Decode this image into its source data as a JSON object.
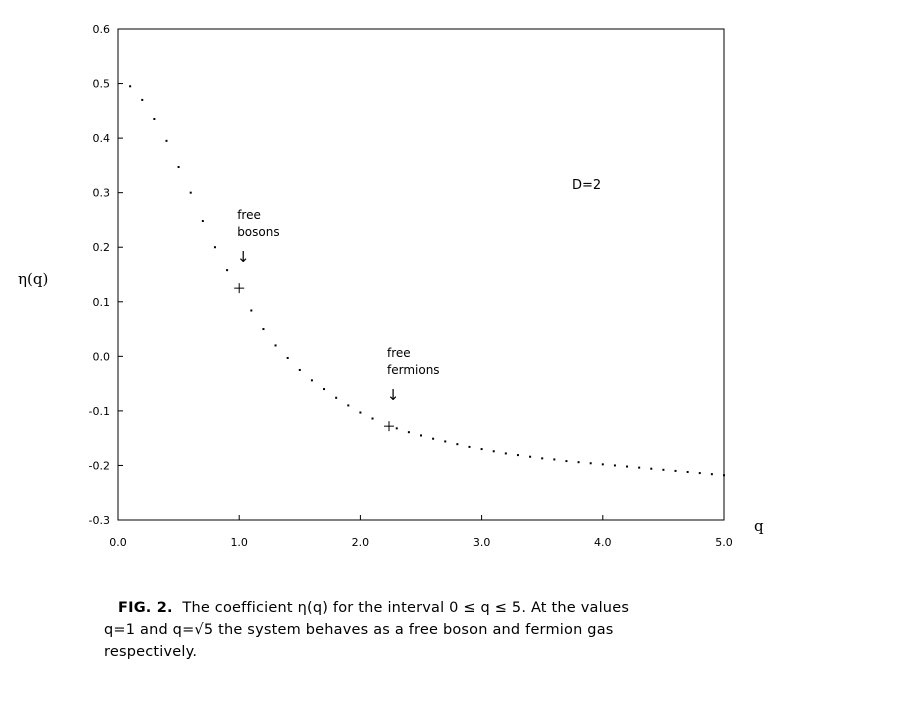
{
  "chart_data": {
    "type": "scatter",
    "title": "",
    "xlabel": "q",
    "ylabel": "η(q)",
    "xlim": [
      0.0,
      5.0
    ],
    "ylim": [
      -0.3,
      0.6
    ],
    "x_ticks": [
      "0.0",
      "1.0",
      "2.0",
      "3.0",
      "4.0",
      "5.0"
    ],
    "x_tick_values": [
      0,
      1,
      2,
      3,
      4,
      5
    ],
    "y_ticks": [
      "-0.3",
      "-0.2",
      "-0.1",
      "0.0",
      "0.1",
      "0.2",
      "0.3",
      "0.4",
      "0.5",
      "0.6"
    ],
    "y_tick_values": [
      -0.3,
      -0.2,
      -0.1,
      0.0,
      0.1,
      0.2,
      0.3,
      0.4,
      0.5,
      0.6
    ],
    "grid": false,
    "series": [
      {
        "x": [
          0.1,
          0.2,
          0.3,
          0.4,
          0.5,
          0.6,
          0.7,
          0.8,
          0.9,
          1.1,
          1.2,
          1.3,
          1.4,
          1.5,
          1.6,
          1.7,
          1.8,
          1.9,
          2.0,
          2.1,
          2.3,
          2.4,
          2.5,
          2.6,
          2.7,
          2.8,
          2.9,
          3.0,
          3.1,
          3.2,
          3.3,
          3.4,
          3.5,
          3.6,
          3.7,
          3.8,
          3.9,
          4.0,
          4.1,
          4.2,
          4.3,
          4.4,
          4.5,
          4.6,
          4.7,
          4.8,
          4.9,
          5.0
        ],
        "y": [
          0.495,
          0.47,
          0.435,
          0.395,
          0.347,
          0.3,
          0.248,
          0.2,
          0.158,
          0.084,
          0.05,
          0.02,
          -0.003,
          -0.025,
          -0.044,
          -0.06,
          -0.076,
          -0.09,
          -0.103,
          -0.114,
          -0.132,
          -0.139,
          -0.145,
          -0.151,
          -0.156,
          -0.161,
          -0.166,
          -0.17,
          -0.174,
          -0.178,
          -0.181,
          -0.184,
          -0.187,
          -0.189,
          -0.192,
          -0.194,
          -0.196,
          -0.198,
          -0.2,
          -0.202,
          -0.204,
          -0.206,
          -0.208,
          -0.21,
          -0.212,
          -0.214,
          -0.216,
          -0.218
        ]
      }
    ],
    "markers": [
      {
        "x": 1.0,
        "y": 0.125,
        "symbol": "+"
      },
      {
        "x": 2.236,
        "y": -0.128,
        "symbol": "+"
      }
    ],
    "annotations": [
      {
        "lines": [
          "free",
          "bosons"
        ],
        "arrow": "↓",
        "x": 1.0,
        "y": 0.125
      },
      {
        "lines": [
          "free",
          "fermions"
        ],
        "arrow": "↓",
        "x": 2.236,
        "y": -0.128
      }
    ],
    "label_text": "D=2"
  },
  "caption": {
    "fig": "FIG. 2.",
    "line1": "The coefficient η(q) for the interval 0 ≤ q ≤ 5.  At the values",
    "line2": "q=1 and q=√5 the system behaves as a free boson and fermion gas",
    "line3": "respectively."
  }
}
